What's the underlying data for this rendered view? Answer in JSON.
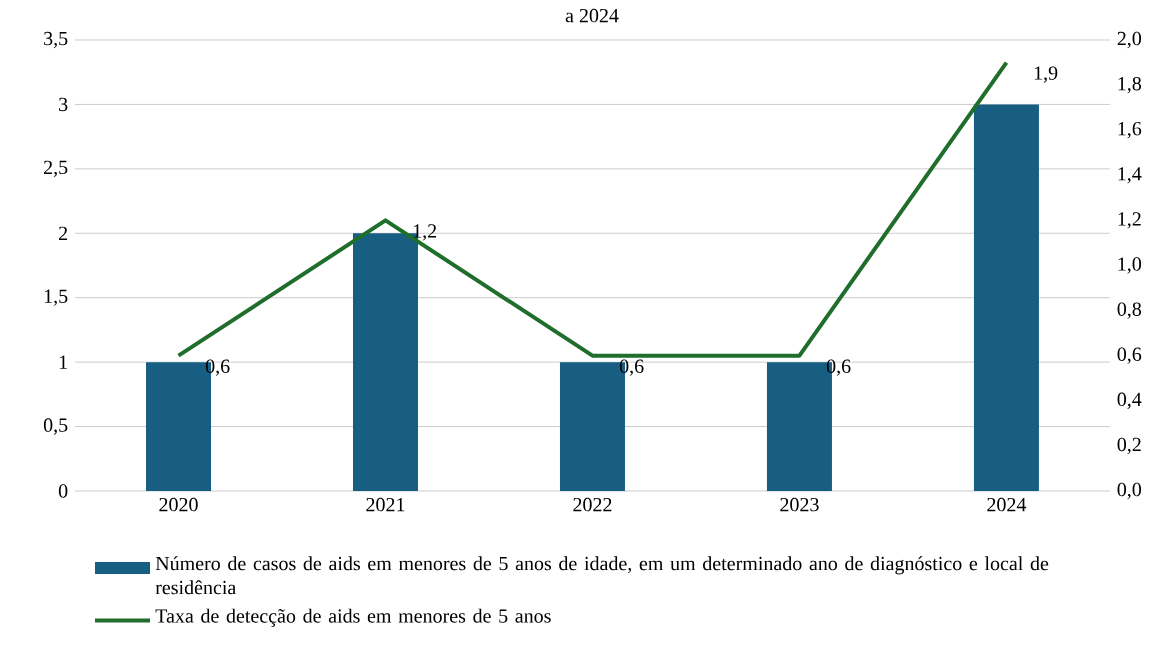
{
  "chart_data": {
    "type": "bar",
    "title": "a 2024",
    "categories": [
      "2020",
      "2021",
      "2022",
      "2023",
      "2024"
    ],
    "series": [
      {
        "name": "Número de casos de aids em menores de 5 anos de idade, em um determinado ano de diagnóstico e local de residência",
        "color": "#175e82",
        "values": [
          1,
          2,
          1,
          1,
          3
        ]
      },
      {
        "name": "Taxa de detecção de aids em menores de 5 anos",
        "type": "line",
        "axis": "y2",
        "color": "#1f6e2c",
        "values": [
          0.6,
          1.2,
          0.6,
          0.6,
          1.9
        ],
        "value_labels": [
          "0,6",
          "1,2",
          "0,6",
          "0,6",
          "1,9"
        ]
      }
    ],
    "ylim": [
      0,
      3.5
    ],
    "yticks": [
      0,
      {
        "value": 0.5,
        "label": "0,5"
      },
      1,
      {
        "value": 1.5,
        "label": "1,5"
      },
      2,
      {
        "value": 2.5,
        "label": "2,5"
      },
      3,
      {
        "value": 3.5,
        "label": "3,5"
      }
    ],
    "y2lim": [
      0,
      2
    ],
    "y2ticks": [
      {
        "value": 0,
        "label": "0,0"
      },
      {
        "value": 0.2,
        "label": "0,2"
      },
      {
        "value": 0.4,
        "label": "0,4"
      },
      {
        "value": 0.6,
        "label": "0,6"
      },
      {
        "value": 0.8,
        "label": "0,8"
      },
      {
        "value": 1,
        "label": "1,0"
      },
      {
        "value": 1.2,
        "label": "1,2"
      },
      {
        "value": 1.4,
        "label": "1,4"
      },
      {
        "value": 1.6,
        "label": "1,6"
      },
      {
        "value": 1.8,
        "label": "1,8"
      },
      {
        "value": 2,
        "label": "2,0"
      }
    ],
    "grid": "y",
    "legend": "bottom"
  }
}
